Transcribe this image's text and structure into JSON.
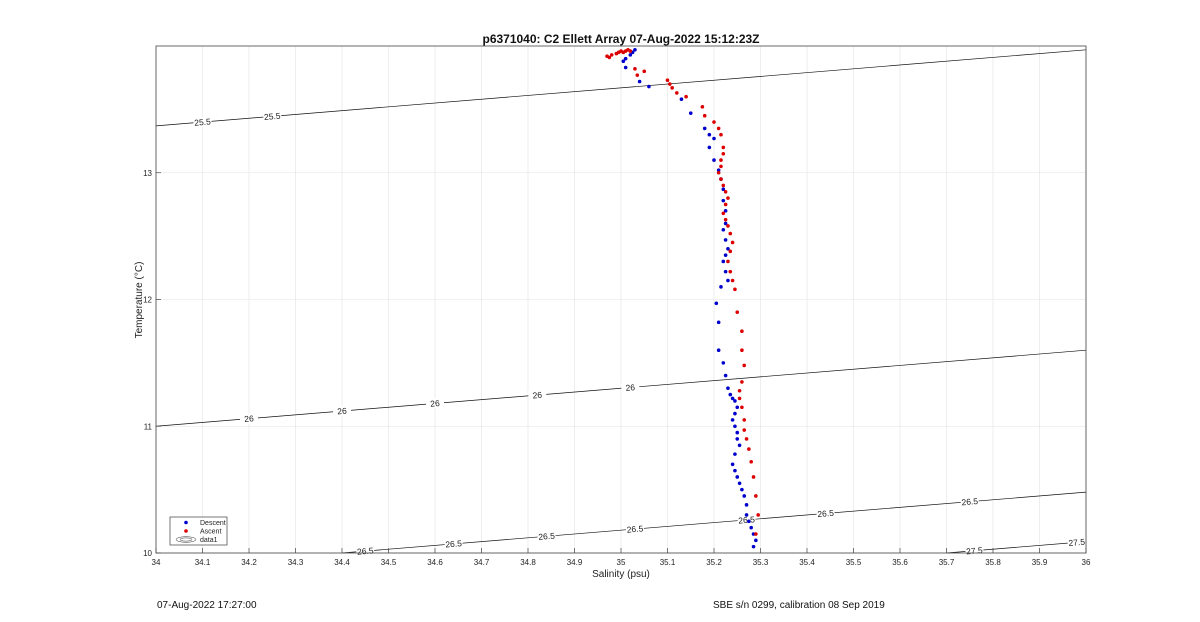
{
  "chart_data": {
    "type": "scatter",
    "title": "p6371040: C2 Ellett Array 07-Aug-2022 15:12:23Z",
    "xlabel": "Salinity (psu)",
    "ylabel": "Temperature (°C)",
    "xlim": [
      34,
      36
    ],
    "ylim": [
      10,
      14
    ],
    "grid": true,
    "x_ticks": [
      "34",
      "34.1",
      "34.2",
      "34.3",
      "34.4",
      "34.5",
      "34.6",
      "34.7",
      "34.8",
      "34.9",
      "35",
      "35.1",
      "35.2",
      "35.3",
      "35.4",
      "35.5",
      "35.6",
      "35.7",
      "35.8",
      "35.9",
      "36"
    ],
    "y_ticks": [
      "10",
      "11",
      "12",
      "13"
    ],
    "legend": {
      "position": "bottom-left",
      "entries": [
        "Descent",
        "Ascent",
        "data1"
      ]
    },
    "contour_levels": [
      25.5,
      26,
      26.5,
      27,
      27.5
    ],
    "contour_label_sets": [
      [
        "25.5",
        "25.5"
      ],
      [
        "26",
        "26",
        "26",
        "26",
        "26"
      ],
      [
        "26.5",
        "26.5",
        "26.5",
        "26.5",
        "26.5",
        "26.5",
        "26.5"
      ],
      [
        "27",
        "27",
        "27",
        "27",
        "27"
      ],
      [
        "27.5",
        "27.5"
      ]
    ],
    "series": [
      {
        "name": "Descent",
        "color": "#0000cc",
        "x": [
          35.03,
          35.025,
          35.02,
          35.01,
          35.005,
          35.01,
          35.04,
          35.06,
          35.13,
          35.15,
          35.18,
          35.19,
          35.2,
          35.19,
          35.2,
          35.21,
          35.215,
          35.22,
          35.22,
          35.225,
          35.225,
          35.22,
          35.225,
          35.23,
          35.225,
          35.22,
          35.225,
          35.23,
          35.215,
          35.205,
          35.21,
          35.21,
          35.22,
          35.225,
          35.23,
          35.235,
          35.24,
          35.245,
          35.25,
          35.245,
          35.24,
          35.245,
          35.25,
          35.25,
          35.255,
          35.245,
          35.24,
          35.245,
          35.25,
          35.255,
          35.26,
          35.265,
          35.27,
          35.27,
          35.275,
          35.28,
          35.285,
          35.29,
          35.285
        ],
        "y": [
          13.97,
          13.95,
          13.93,
          13.9,
          13.88,
          13.83,
          13.72,
          13.68,
          13.58,
          13.47,
          13.35,
          13.3,
          13.27,
          13.2,
          13.1,
          13.02,
          12.95,
          12.87,
          12.78,
          12.7,
          12.6,
          12.55,
          12.47,
          12.4,
          12.35,
          12.3,
          12.22,
          12.15,
          12.1,
          11.97,
          11.82,
          11.6,
          11.5,
          11.4,
          11.3,
          11.25,
          11.22,
          11.2,
          11.15,
          11.1,
          11.05,
          11.0,
          10.95,
          10.9,
          10.85,
          10.78,
          10.7,
          10.65,
          10.6,
          10.55,
          10.5,
          10.45,
          10.38,
          10.3,
          10.25,
          10.2,
          10.15,
          10.1,
          10.05
        ]
      },
      {
        "name": "Ascent",
        "color": "#dd0000",
        "x": [
          34.97,
          34.975,
          34.98,
          34.99,
          34.995,
          35.0,
          35.005,
          35.01,
          35.015,
          35.02,
          35.03,
          35.05,
          35.035,
          35.1,
          35.105,
          35.11,
          35.12,
          35.14,
          35.175,
          35.18,
          35.2,
          35.21,
          35.215,
          35.22,
          35.22,
          35.215,
          35.215,
          35.21,
          35.215,
          35.22,
          35.225,
          35.23,
          35.225,
          35.22,
          35.225,
          35.23,
          35.235,
          35.24,
          35.235,
          35.23,
          35.235,
          35.24,
          35.245,
          35.25,
          35.26,
          35.26,
          35.265,
          35.26,
          35.255,
          35.255,
          35.26,
          35.265,
          35.265,
          35.27,
          35.275,
          35.28,
          35.285,
          35.29,
          35.295,
          35.29
        ],
        "y": [
          13.92,
          13.91,
          13.93,
          13.94,
          13.95,
          13.96,
          13.95,
          13.96,
          13.97,
          13.96,
          13.82,
          13.8,
          13.77,
          13.73,
          13.7,
          13.67,
          13.63,
          13.6,
          13.52,
          13.45,
          13.4,
          13.35,
          13.3,
          13.2,
          13.15,
          13.1,
          13.05,
          13.0,
          12.95,
          12.9,
          12.85,
          12.8,
          12.75,
          12.68,
          12.63,
          12.58,
          12.52,
          12.45,
          12.38,
          12.3,
          12.22,
          12.15,
          12.08,
          11.9,
          11.75,
          11.6,
          11.48,
          11.35,
          11.28,
          11.22,
          11.15,
          11.05,
          10.97,
          10.9,
          10.82,
          10.72,
          10.6,
          10.45,
          10.3,
          10.15
        ]
      }
    ]
  },
  "footer": {
    "left": "07-Aug-2022 17:27:00",
    "right": "SBE s/n 0299, calibration 08 Sep 2019"
  }
}
